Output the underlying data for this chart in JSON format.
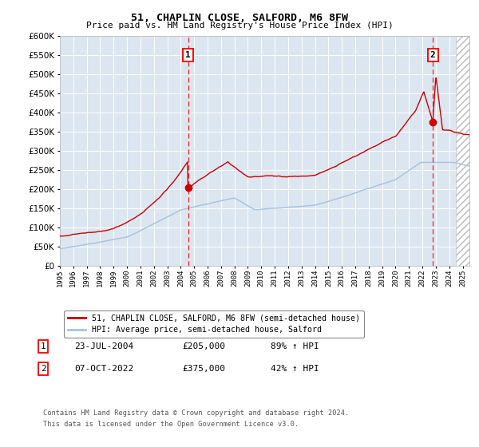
{
  "title": "51, CHAPLIN CLOSE, SALFORD, M6 8FW",
  "subtitle": "Price paid vs. HM Land Registry's House Price Index (HPI)",
  "ylim": [
    0,
    600000
  ],
  "yticks": [
    0,
    50000,
    100000,
    150000,
    200000,
    250000,
    300000,
    350000,
    400000,
    450000,
    500000,
    550000,
    600000
  ],
  "xlim_start": 1995.0,
  "xlim_end": 2025.5,
  "sale1_x": 2004.55,
  "sale1_y": 205000,
  "sale1_label": "1",
  "sale1_date": "23-JUL-2004",
  "sale1_price": "£205,000",
  "sale1_hpi": "89% ↑ HPI",
  "sale2_x": 2022.77,
  "sale2_y": 375000,
  "sale2_label": "2",
  "sale2_date": "07-OCT-2022",
  "sale2_price": "£375,000",
  "sale2_hpi": "42% ↑ HPI",
  "legend_line1": "51, CHAPLIN CLOSE, SALFORD, M6 8FW (semi-detached house)",
  "legend_line2": "HPI: Average price, semi-detached house, Salford",
  "footnote1": "Contains HM Land Registry data © Crown copyright and database right 2024.",
  "footnote2": "This data is licensed under the Open Government Licence v3.0.",
  "plot_bg": "#dce6f1",
  "hpi_color": "#a8c4e0",
  "price_color": "#cc0000",
  "grid_color": "#ffffff",
  "hatch_color": "#b8b8b8",
  "hatch_start": 2024.5
}
